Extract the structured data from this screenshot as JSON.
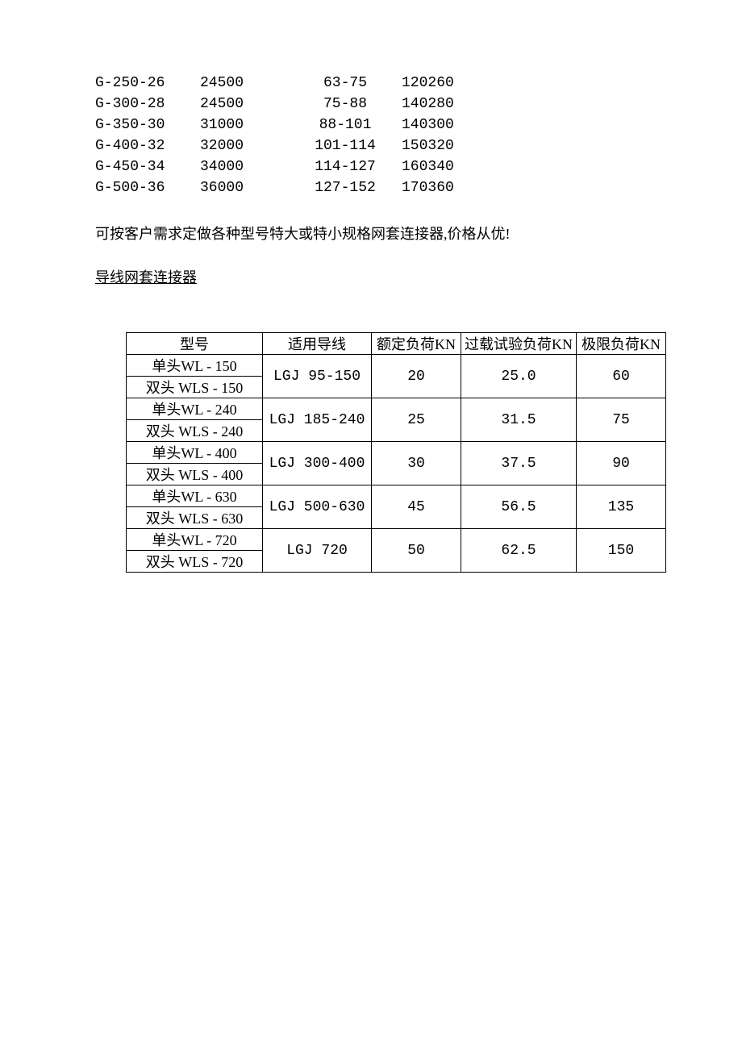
{
  "top_list": {
    "rows": [
      {
        "c1": "G-250-26",
        "c2": "24500",
        "c3": "63-75",
        "c4": "120260"
      },
      {
        "c1": "G-300-28",
        "c2": "24500",
        "c3": "75-88",
        "c4": "140280"
      },
      {
        "c1": "G-350-30",
        "c2": "31000",
        "c3": "88-101",
        "c4": "140300"
      },
      {
        "c1": "G-400-32",
        "c2": "32000",
        "c3": "101-114",
        "c4": "150320"
      },
      {
        "c1": "G-450-34",
        "c2": "34000",
        "c3": "114-127",
        "c4": "160340"
      },
      {
        "c1": "G-500-36",
        "c2": "36000",
        "c3": "127-152",
        "c4": "170360"
      }
    ]
  },
  "note_text": "可按客户需求定做各种型号特大或特小规格网套连接器,价格从优!",
  "section_title": "导线网套连接器",
  "table": {
    "headers": {
      "model": "型号",
      "wire": "适用导线",
      "rated": "额定负荷KN",
      "overload": "过载试验负荷KN",
      "limit": "极限负荷KN"
    },
    "groups": [
      {
        "single": "单头WL - 150",
        "double": "双头 WLS - 150",
        "wire": "LGJ 95-150",
        "rated": "20",
        "overload": "25.0",
        "limit": "60"
      },
      {
        "single": "单头WL - 240",
        "double": "双头 WLS - 240",
        "wire": "LGJ 185-240",
        "rated": "25",
        "overload": "31.5",
        "limit": "75"
      },
      {
        "single": "单头WL - 400",
        "double": "双头 WLS - 400",
        "wire": "LGJ 300-400",
        "rated": "30",
        "overload": "37.5",
        "limit": "90"
      },
      {
        "single": "单头WL - 630",
        "double": "双头 WLS - 630",
        "wire": "LGJ 500-630",
        "rated": "45",
        "overload": "56.5",
        "limit": "135"
      },
      {
        "single": "单头WL - 720",
        "double": "双头 WLS - 720",
        "wire": "LGJ 720",
        "rated": "50",
        "overload": "62.5",
        "limit": "150"
      }
    ]
  }
}
